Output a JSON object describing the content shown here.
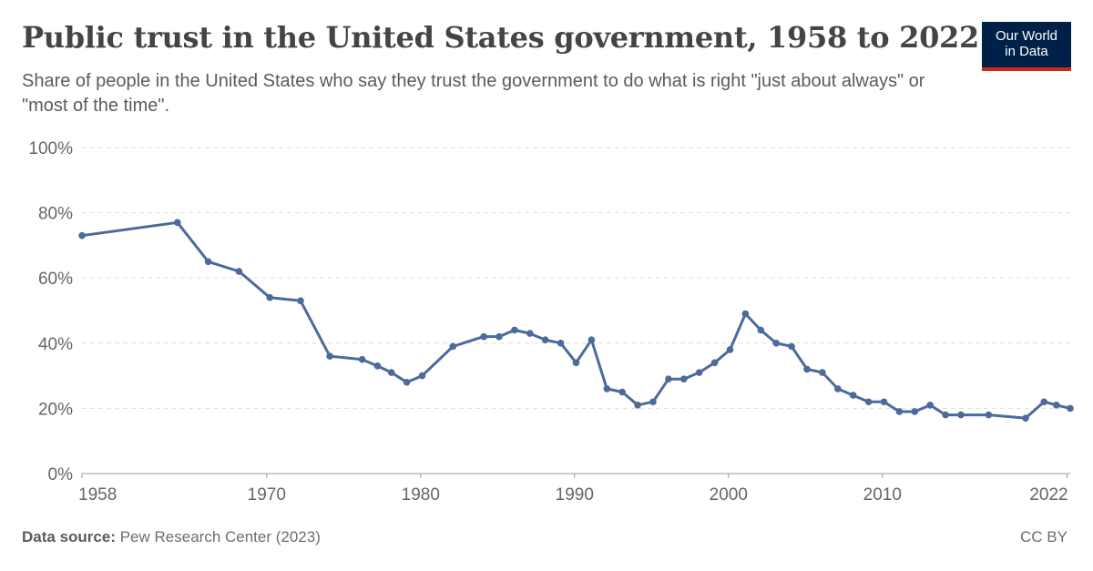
{
  "header": {
    "title": "Public trust in the United States government, 1958 to 2022",
    "subtitle": "Share of people in the United States who say they trust the government to do what is right \"just about always\" or \"most of the time\".",
    "logo_line1": "Our World",
    "logo_line2": "in Data"
  },
  "footer": {
    "source_label": "Data source:",
    "source_text": "Pew Research Center (2023)",
    "license": "CC BY"
  },
  "colors": {
    "line": "#4c6a9c",
    "grid": "#dddddd",
    "axis_text": "#666666",
    "logo_bg": "#002147",
    "logo_accent": "#ce261e"
  },
  "chart_data": {
    "type": "line",
    "title": "Public trust in the United States government, 1958 to 2022",
    "xlabel": "",
    "ylabel": "",
    "xlim": [
      1958,
      2022.2
    ],
    "ylim": [
      0,
      100
    ],
    "grid": true,
    "y_ticks": [
      0,
      20,
      40,
      60,
      80,
      100
    ],
    "y_tick_labels": [
      "0%",
      "20%",
      "40%",
      "60%",
      "80%",
      "100%"
    ],
    "x_ticks": [
      1958,
      1970,
      1980,
      1990,
      2000,
      2010,
      2022
    ],
    "x_tick_labels": [
      "1958",
      "1970",
      "1980",
      "1990",
      "2000",
      "2010",
      "2022"
    ],
    "series": [
      {
        "x": [
          1958,
          1964.2,
          1966.2,
          1968.2,
          1970.2,
          1972.2,
          1974.1,
          1976.2,
          1977.2,
          1978.1,
          1979.1,
          1980.1,
          1982.1,
          1984.1,
          1985.1,
          1986.1,
          1987.1,
          1988.1,
          1989.1,
          1990.1,
          1991.1,
          1992.1,
          1993.1,
          1994.1,
          1995.1,
          1996.1,
          1997.1,
          1998.1,
          1999.1,
          2000.1,
          2001.1,
          2002.1,
          2003.1,
          2004.1,
          2005.1,
          2006.1,
          2007.1,
          2008.1,
          2009.1,
          2010.1,
          2011.1,
          2012.1,
          2013.1,
          2014.1,
          2015.1,
          2016.9,
          2019.3,
          2020.5,
          2021.3,
          2022.2
        ],
        "values": [
          73,
          77,
          65,
          62,
          54,
          53,
          36,
          35,
          33,
          31,
          28,
          30,
          39,
          42,
          42,
          44,
          43,
          41,
          40,
          34,
          41,
          26,
          25,
          21,
          22,
          29,
          29,
          31,
          34,
          38,
          49,
          44,
          40,
          39,
          32,
          31,
          26,
          24,
          22,
          22,
          19,
          19,
          21,
          18,
          18,
          18,
          17,
          22,
          21,
          20
        ]
      }
    ]
  }
}
